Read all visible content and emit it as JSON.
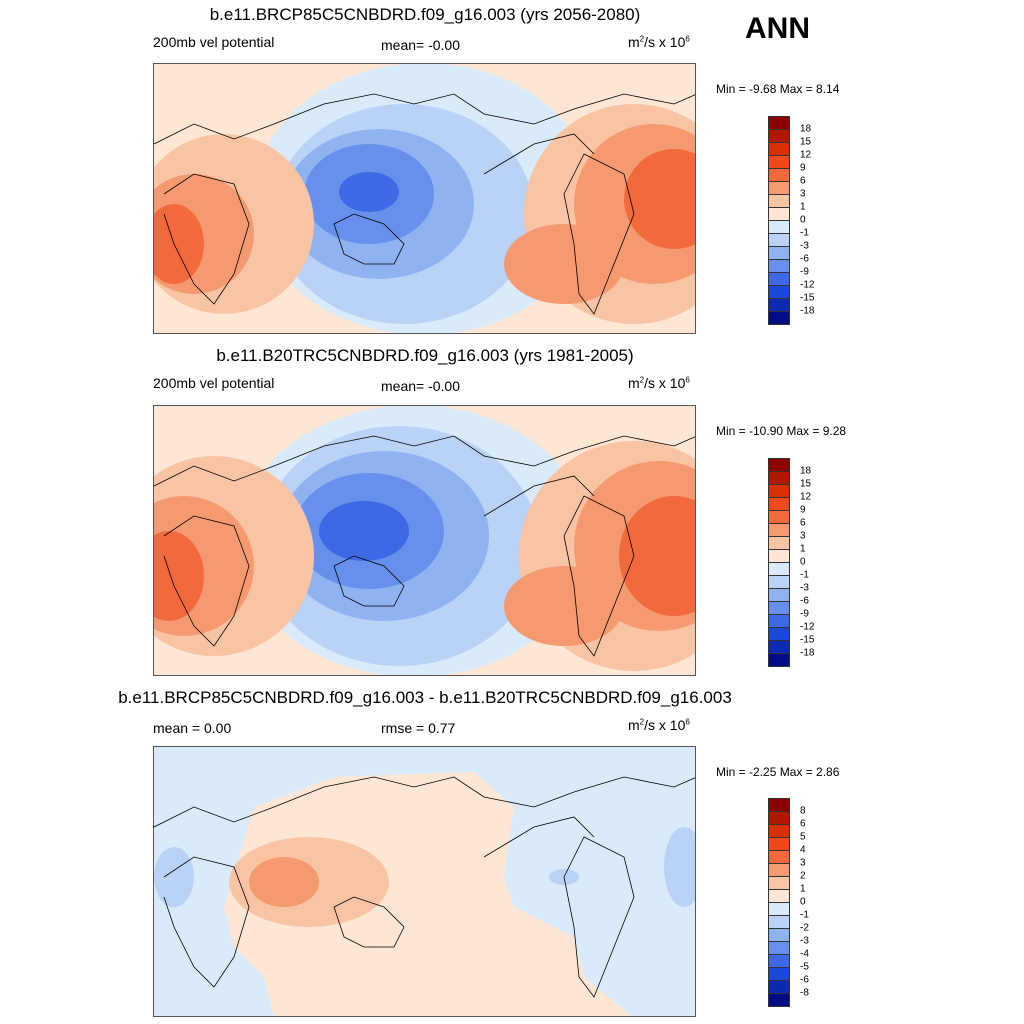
{
  "season": "ANN",
  "panels": [
    {
      "title": "b.e11.BRCP85C5CNBDRD.f09_g16.003 (yrs 2056-2080)",
      "left_label": "200mb vel potential",
      "center_label": "mean=  -0.00",
      "units_base": "m",
      "units_exp1": "2",
      "units_mid": "/s x 10",
      "units_exp2": "6",
      "minmax": "Min =  -9.68 Max =   8.14",
      "colorbar_labels": [
        "18",
        "15",
        "12",
        "9",
        "6",
        "3",
        "1",
        "0",
        "-1",
        "-3",
        "-6",
        "-9",
        "-12",
        "-15",
        "-18"
      ]
    },
    {
      "title": "b.e11.B20TRC5CNBDRD.f09_g16.003 (yrs 1981-2005)",
      "left_label": "200mb vel potential",
      "center_label": "mean=  -0.00",
      "units_base": "m",
      "units_exp1": "2",
      "units_mid": "/s x 10",
      "units_exp2": "6",
      "minmax": "Min = -10.90 Max =   9.28",
      "colorbar_labels": [
        "18",
        "15",
        "12",
        "9",
        "6",
        "3",
        "1",
        "0",
        "-1",
        "-3",
        "-6",
        "-9",
        "-12",
        "-15",
        "-18"
      ]
    },
    {
      "title": "b.e11.BRCP85C5CNBDRD.f09_g16.003 - b.e11.B20TRC5CNBDRD.f09_g16.003",
      "left_label": "mean =   0.00",
      "center_label": "rmse =   0.77",
      "units_base": "m",
      "units_exp1": "2",
      "units_mid": "/s x 10",
      "units_exp2": "6",
      "minmax": "Min =  -2.25 Max =   2.86",
      "colorbar_labels": [
        "8",
        "6",
        "5",
        "4",
        "3",
        "2",
        "1",
        "0",
        "-1",
        "-2",
        "-3",
        "-4",
        "-5",
        "-6",
        "-8"
      ]
    }
  ],
  "colors": {
    "scale": [
      "#8b0000",
      "#b01800",
      "#d83000",
      "#ee4a1c",
      "#f26a3c",
      "#f59a70",
      "#f9c4a4",
      "#fde6d4",
      "#d9ebfa",
      "#b9d2f6",
      "#8fb2f0",
      "#6690ec",
      "#3f68e4",
      "#1c48d8",
      "#0c2ab0",
      "#020c84"
    ],
    "land_line": "#000000",
    "ocean_neutral": "#d6e8fa"
  }
}
